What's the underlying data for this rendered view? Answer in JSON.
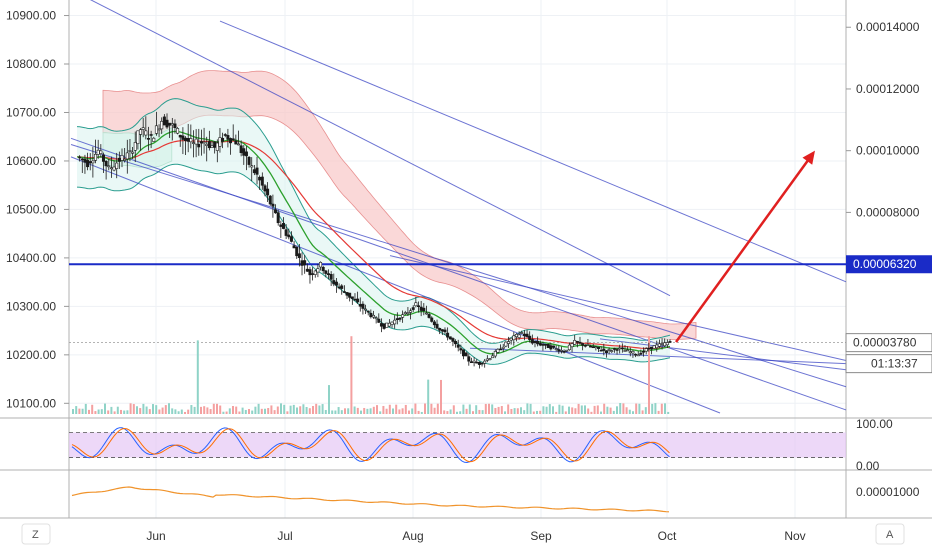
{
  "chart_data": {
    "type": "line",
    "title": "",
    "main_panel": {
      "type": "candlestick",
      "left_axis": {
        "ticks": [
          "10900.00",
          "10800.00",
          "10700.00",
          "10600.00",
          "10500.00",
          "10400.00",
          "10300.00",
          "10200.00",
          "10100.00"
        ],
        "range": [
          10080,
          10930
        ]
      },
      "right_axis": {
        "ticks": [
          "0.00014000",
          "0.00012000",
          "0.00010000",
          "0.00008000"
        ],
        "range": [
          1.5e-05,
          0.0001485
        ]
      },
      "price_series_right_units": [
        9.8e-05,
        9.6e-05,
        0.0001,
        9.4e-05,
        9.7e-05,
        9.9e-05,
        0.000107,
        0.000104,
        0.00011,
        0.000108,
        0.000104,
        0.000102,
        0.000103,
        0.000101,
        0.000105,
        0.000103,
        9.7e-05,
        9.2e-05,
        8.5e-05,
        7.7e-05,
        7.2e-05,
        6.5e-05,
        6e-05,
        6.3e-05,
        5.8e-05,
        5.5e-05,
        5.2e-05,
        4.9e-05,
        4.6e-05,
        4.3e-05,
        4.5e-05,
        4.7e-05,
        5e-05,
        4.7e-05,
        4.3e-05,
        4e-05,
        3.6e-05,
        3.2e-05,
        3.1e-05,
        3.3e-05,
        3.6e-05,
        3.9e-05,
        4.1e-05,
        3.8e-05,
        3.7e-05,
        3.6e-05,
        3.5e-05,
        3.8e-05,
        3.7e-05,
        3.6e-05,
        3.5e-05,
        3.6e-05,
        3.5e-05,
        3.4e-05,
        3.6e-05,
        3.7e-05,
        3.8e-05
      ],
      "levels": [
        {
          "label": "0.00006320",
          "value": 6.32e-05,
          "color": "#1a2bc7"
        },
        {
          "label": "0.00003780",
          "value": 3.78e-05,
          "color": "#555555"
        },
        {
          "label": "01:13:37",
          "value": null,
          "color": "#555555"
        }
      ],
      "forecast_arrow": {
        "from": {
          "x": "Oct",
          "y": 3.8e-05
        },
        "to": {
          "x": "Nov",
          "y": 0.0001
        },
        "color": "#e02020"
      }
    },
    "stochastic_panel": {
      "ticks": [
        "100.00",
        "0.00"
      ],
      "range": [
        -5,
        110
      ],
      "upper_band": 80,
      "lower_band": 20
    },
    "lower_panel": {
      "ticks": [
        "0.00001000"
      ],
      "range": [
        7e-06,
        1.25e-05
      ],
      "series_color": "#f0932b"
    },
    "x_axis": {
      "ticks": [
        "Jun",
        "Jul",
        "Aug",
        "Sep",
        "Oct",
        "Nov"
      ]
    },
    "grid": true
  },
  "toolbar": {
    "left_label": "Z",
    "right_label": "A"
  },
  "colors": {
    "price": "#1a1a1a",
    "ema_fast": "#2ca02c",
    "ema_slow": "#e53935",
    "bollinger": "#2a9d8f",
    "channel": "#2636b8",
    "cloud_bear": "#f8b4b4",
    "cloud_bull": "#b7e4c7",
    "stoch_fill": "#e6c8f5"
  }
}
